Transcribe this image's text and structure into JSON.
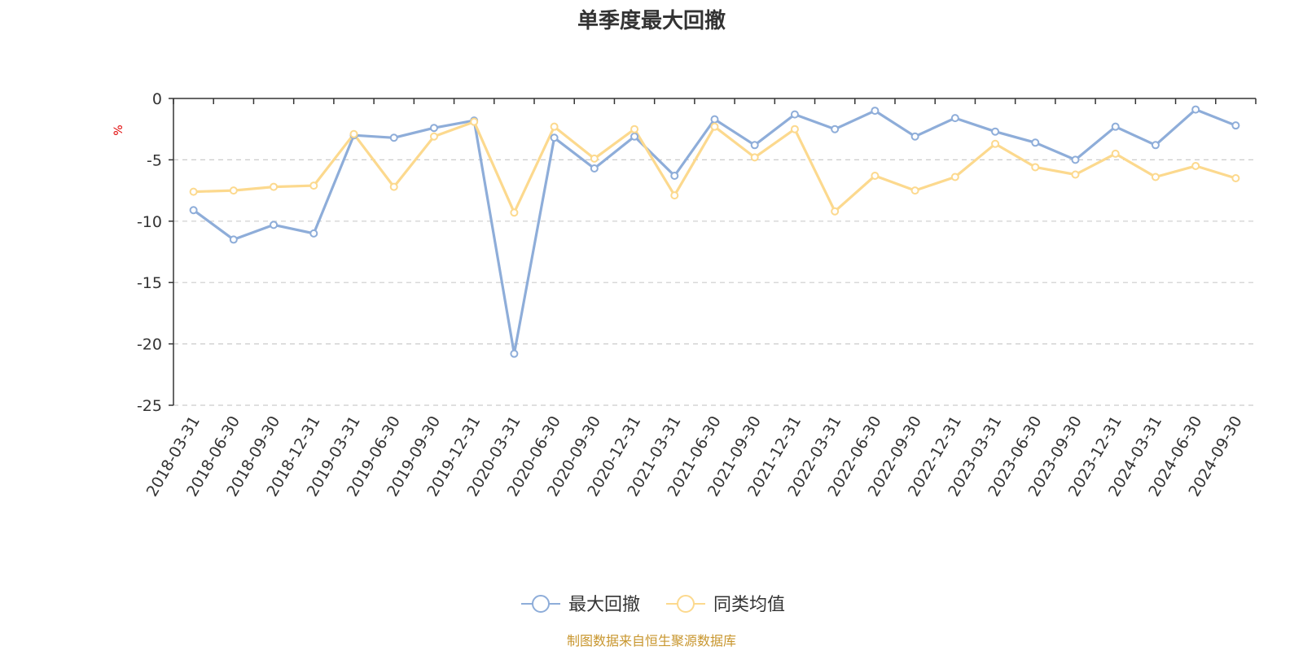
{
  "chart_data": {
    "type": "line",
    "title": "单季度最大回撤",
    "ylabel": "%",
    "ylim": [
      -25,
      0
    ],
    "yticks": [
      "0",
      "-5",
      "-10",
      "-15",
      "-20",
      "-25"
    ],
    "grid": true,
    "legend_position": "bottom-center",
    "x": [
      "2018-03-31",
      "2018-06-30",
      "2018-09-30",
      "2018-12-31",
      "2019-03-31",
      "2019-06-30",
      "2019-09-30",
      "2019-12-31",
      "2020-03-31",
      "2020-06-30",
      "2020-09-30",
      "2020-12-31",
      "2021-03-31",
      "2021-06-30",
      "2021-09-30",
      "2021-12-31",
      "2022-03-31",
      "2022-06-30",
      "2022-09-30",
      "2022-12-31",
      "2023-03-31",
      "2023-06-30",
      "2023-09-30",
      "2023-12-31",
      "2024-03-31",
      "2024-06-30",
      "2024-09-30"
    ],
    "series": [
      {
        "name": "最大回撤",
        "color": "#8eadd9",
        "values": [
          -9.1,
          -11.5,
          -10.3,
          -11.0,
          -3.0,
          -3.2,
          -2.4,
          -1.8,
          -20.8,
          -3.2,
          -5.7,
          -3.1,
          -6.3,
          -1.7,
          -3.8,
          -1.3,
          -2.5,
          -1.0,
          -3.1,
          -1.6,
          -2.7,
          -3.6,
          -5.0,
          -2.3,
          -3.8,
          -0.9,
          -2.2
        ]
      },
      {
        "name": "同类均值",
        "color": "#fcd98e",
        "values": [
          -7.6,
          -7.5,
          -7.2,
          -7.1,
          -2.9,
          -7.2,
          -3.1,
          -1.9,
          -9.3,
          -2.3,
          -4.9,
          -2.5,
          -7.9,
          -2.3,
          -4.8,
          -2.5,
          -9.2,
          -6.3,
          -7.5,
          -6.4,
          -3.7,
          -5.6,
          -6.2,
          -4.5,
          -6.4,
          -5.5,
          -6.5
        ]
      }
    ]
  },
  "source": "制图数据来自恒生聚源数据库"
}
